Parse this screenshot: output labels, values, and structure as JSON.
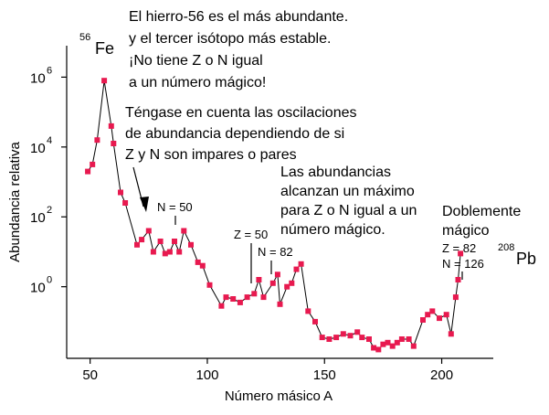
{
  "chart_data": {
    "type": "scatter",
    "xlabel": "Número másico A",
    "ylabel": "Abundancia relativa",
    "xlim": [
      40,
      222
    ],
    "ylim": [
      -2.05,
      6.9
    ],
    "y_scale": "log10",
    "x_ticks": [
      50,
      100,
      150,
      200
    ],
    "x_tick_labels": [
      "50",
      "100",
      "150",
      "200"
    ],
    "y_ticks": [
      {
        "value": 0,
        "base": "10",
        "exp": "0"
      },
      {
        "value": 2,
        "base": "10",
        "exp": "2"
      },
      {
        "value": 4,
        "base": "10",
        "exp": "4"
      },
      {
        "value": 6,
        "base": "10",
        "exp": "6"
      }
    ],
    "grid": false,
    "series": [
      {
        "color": "#e8194f",
        "points": [
          [
            49,
            3.3
          ],
          [
            51,
            3.5
          ],
          [
            53,
            4.2
          ],
          [
            56,
            5.9
          ],
          [
            59,
            4.6
          ],
          [
            60,
            4.1
          ],
          [
            63,
            2.7
          ],
          [
            65,
            2.4
          ],
          [
            70,
            1.2
          ],
          [
            72,
            1.35
          ],
          [
            75,
            1.6
          ],
          [
            77,
            1.0
          ],
          [
            80,
            1.3
          ],
          [
            82,
            0.95
          ],
          [
            84,
            1.0
          ],
          [
            86,
            1.3
          ],
          [
            88,
            1.0
          ],
          [
            90,
            1.6
          ],
          [
            93,
            1.2
          ],
          [
            96,
            0.7
          ],
          [
            98,
            0.6
          ],
          [
            101,
            0.05
          ],
          [
            106,
            -0.55
          ],
          [
            108,
            -0.3
          ],
          [
            111,
            -0.35
          ],
          [
            114,
            -0.45
          ],
          [
            117,
            -0.3
          ],
          [
            120,
            -0.2
          ],
          [
            122,
            0.2
          ],
          [
            124,
            -0.3
          ],
          [
            128,
            0.1
          ],
          [
            130,
            0.35
          ],
          [
            131,
            -0.5
          ],
          [
            134,
            0.0
          ],
          [
            136,
            0.1
          ],
          [
            138,
            0.5
          ],
          [
            140,
            0.65
          ],
          [
            143,
            -0.7
          ],
          [
            146,
            -1.0
          ],
          [
            149,
            -1.45
          ],
          [
            152,
            -1.5
          ],
          [
            155,
            -1.45
          ],
          [
            158,
            -1.35
          ],
          [
            161,
            -1.4
          ],
          [
            164,
            -1.3
          ],
          [
            166,
            -1.45
          ],
          [
            169,
            -1.5
          ],
          [
            171,
            -1.75
          ],
          [
            173,
            -1.8
          ],
          [
            175,
            -1.65
          ],
          [
            177,
            -1.6
          ],
          [
            179,
            -1.7
          ],
          [
            181,
            -1.6
          ],
          [
            183,
            -1.5
          ],
          [
            186,
            -1.5
          ],
          [
            188,
            -1.7
          ],
          [
            192,
            -0.95
          ],
          [
            194,
            -0.8
          ],
          [
            196,
            -0.7
          ],
          [
            199,
            -0.9
          ],
          [
            202,
            -0.8
          ],
          [
            204,
            -1.35
          ],
          [
            206,
            -0.3
          ],
          [
            207,
            0.2
          ],
          [
            208,
            0.95
          ]
        ]
      }
    ],
    "annotations": {
      "fe": {
        "sup": "56",
        "label": "Fe",
        "x": 56,
        "y": 5.9
      },
      "pb": {
        "sup": "208",
        "label": "Pb",
        "x": 208,
        "y": 0.95
      },
      "iron": {
        "lines": [
          "El hierro-56 es el más abundante.",
          "y el tercer isótopo más estable.",
          "¡No tiene Z o N igual",
          "a un número mágico!"
        ]
      },
      "oscillations": {
        "lines": [
          "Téngase  en cuenta las oscilaciones",
          "de abundancia dependiendo de si",
          "Z y N son impares o pares"
        ],
        "arrow_to": {
          "x": 77,
          "y": 1.5
        }
      },
      "maximum": {
        "lines": [
          "Las abundancias",
          "alcanzan un máximo",
          "para Z o N igual a un",
          "número mágico."
        ]
      },
      "doubly": {
        "lines": [
          "Doblemente",
          "mágico"
        ],
        "sub_lines": [
          "Z = 82",
          "N = 126"
        ]
      },
      "n50": {
        "label": "N = 50",
        "x": 90,
        "y": 1.6
      },
      "z50": {
        "label": "Z = 50",
        "x": 122,
        "y": 0.2
      },
      "n82": {
        "label": "N = 82",
        "x": 130,
        "y": 0.35
      }
    }
  }
}
